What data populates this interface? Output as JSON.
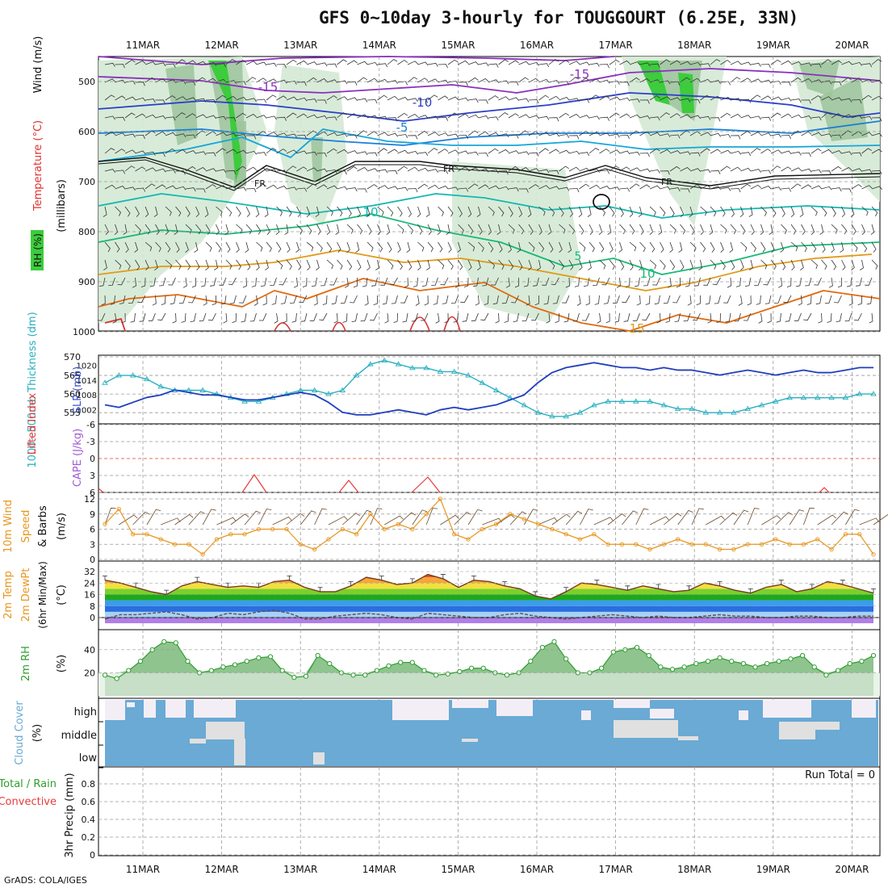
{
  "title": "GFS 0~10day 3-hourly for TOUGGOURT (6.25E, 33N)",
  "credit": "GrADS: COLA/IGES",
  "dates": [
    "11MAR",
    "12MAR",
    "13MAR",
    "14MAR",
    "15MAR",
    "16MAR",
    "17MAR",
    "18MAR",
    "19MAR",
    "20MAR"
  ],
  "colors": {
    "blue": "#1f3fbf",
    "cyan": "#2ab0c0",
    "orange": "#e8961e",
    "green": "#2e9e2e",
    "cloud": "#6aaad4",
    "red": "#e83a3a",
    "purple": "#9b59d0",
    "brown": "#8b5a2b"
  },
  "panels": {
    "upper": {
      "ylabel_rh": "RH (%)",
      "ylabel_temp": "Temperature (°C)",
      "ylabel_wind": "Wind (m/s)",
      "ylabel_p": "(millibars)",
      "ticks": [
        "500",
        "600",
        "700",
        "800",
        "900",
        "1000"
      ],
      "labels": {
        "m15a": "-15",
        "m15b": "-15",
        "m10": "-10",
        "m5": "-5",
        "fr1": "FR",
        "fr2": "FR",
        "fr3": "FR",
        "p10a": "10",
        "p10b": "10",
        "p5": "5",
        "p15": "15"
      }
    },
    "thick": {
      "ylabel_left": "1000~500mb Thickness (dm)",
      "ylabel_right": "SLP (mb)",
      "ticks_left": [
        "570",
        "565",
        "560",
        "555"
      ],
      "ticks_right": [
        "1020",
        "1014",
        "1008",
        "1002"
      ]
    },
    "cape": {
      "ylabel_left": "Lifted Index",
      "ylabel_right": "CAPE (J/kg)",
      "ticks": [
        "-6",
        "-3",
        "0",
        "3",
        "6"
      ]
    },
    "wind": {
      "ylabel1": "10m Wind",
      "ylabel2": "Speed",
      "ylabel3": "& Barbs",
      "ylabel_unit": "(m/s)",
      "ticks": [
        "12",
        "9",
        "6",
        "3",
        "0"
      ]
    },
    "temp": {
      "ylabel1": "2m Temp",
      "ylabel2": "2m DewPt",
      "ylabel3": "(6hr Min/Max)",
      "ylabel_unit": "(°C)",
      "ticks": [
        "32",
        "24",
        "16",
        "8",
        "0"
      ]
    },
    "rh": {
      "ylabel": "2m RH",
      "ylabel_unit": "(%)",
      "ticks": [
        "40",
        "20"
      ]
    },
    "cloud": {
      "ylabel": "Cloud Cover",
      "ylabel_unit": "(%)",
      "levels": [
        "high",
        "middle",
        "low"
      ]
    },
    "precip": {
      "ylabel1": "Total / Rain",
      "ylabel2": "Convective",
      "ylabel_unit": "3hr Precip (mm)",
      "ticks": [
        "0.8",
        "0.6",
        "0.4",
        "0.2",
        "0"
      ],
      "run_total": "Run Total = 0"
    }
  },
  "chart_data": [
    {
      "type": "line",
      "title": "1000~500mb Thickness (dm) / SLP (mb)",
      "series": [
        {
          "name": "1000~500mb Thickness (dm)",
          "values": [
            563,
            565,
            565,
            564,
            562,
            561,
            561,
            561,
            560,
            559,
            558,
            558,
            559,
            560,
            561,
            561,
            560,
            561,
            565,
            568,
            569,
            568,
            567,
            567,
            566,
            566,
            565,
            563,
            561,
            559,
            557,
            555,
            554,
            554,
            555,
            557,
            558,
            558,
            558,
            558,
            557,
            556,
            556,
            555,
            555,
            555,
            556,
            557,
            558,
            559,
            559,
            559,
            559,
            559,
            560,
            560
          ]
        },
        {
          "name": "SLP (mb)",
          "values": [
            1004,
            1003,
            1005,
            1007,
            1008,
            1010,
            1009,
            1008,
            1008,
            1007,
            1006,
            1006,
            1007,
            1008,
            1009,
            1008,
            1005,
            1001,
            1000,
            1000,
            1001,
            1002,
            1001,
            1000,
            1002,
            1003,
            1002,
            1003,
            1004,
            1006,
            1008,
            1013,
            1017,
            1019,
            1020,
            1021,
            1020,
            1019,
            1019,
            1018,
            1019,
            1018,
            1018,
            1017,
            1016,
            1017,
            1018,
            1017,
            1016,
            1017,
            1018,
            1017,
            1017,
            1018,
            1019,
            1019
          ]
        }
      ]
    },
    {
      "type": "line",
      "title": "10m Wind Speed (m/s)",
      "series": [
        {
          "name": "10m Wind Speed",
          "values": [
            7,
            10,
            5,
            5,
            4,
            3,
            3,
            1,
            4,
            5,
            5,
            6,
            6,
            6,
            3,
            2,
            4,
            6,
            5,
            9,
            6,
            7,
            6,
            9,
            12,
            5,
            4,
            6,
            7,
            9,
            8,
            7,
            6,
            5,
            4,
            5,
            3,
            3,
            3,
            2,
            3,
            4,
            3,
            3,
            2,
            2,
            3,
            3,
            4,
            3,
            3,
            4,
            2,
            5,
            5,
            1
          ]
        }
      ]
    },
    {
      "type": "area",
      "title": "2m Temp / DewPt (°C)",
      "series": [
        {
          "name": "2m Temp",
          "values": [
            26,
            24,
            21,
            18,
            16,
            22,
            25,
            23,
            21,
            22,
            21,
            25,
            26,
            21,
            18,
            18,
            22,
            28,
            26,
            23,
            24,
            30,
            27,
            21,
            26,
            25,
            22,
            20,
            15,
            13,
            18,
            24,
            23,
            21,
            19,
            22,
            20,
            18,
            19,
            24,
            22,
            19,
            17,
            21,
            23,
            18,
            20,
            25,
            23,
            20,
            17
          ]
        },
        {
          "name": "2m DewPt",
          "values": [
            -1,
            2,
            2,
            3,
            4,
            2,
            -1,
            0,
            3,
            2,
            4,
            5,
            3,
            -1,
            -1,
            1,
            2,
            3,
            2,
            0,
            -1,
            3,
            2,
            1,
            0,
            0,
            2,
            3,
            1,
            0,
            -1,
            0,
            1,
            2,
            1,
            0,
            1,
            0,
            0,
            1,
            2,
            1,
            1,
            0,
            0,
            1,
            1,
            0,
            0,
            1,
            1
          ]
        }
      ]
    },
    {
      "type": "area",
      "title": "2m RH (%)",
      "series": [
        {
          "name": "2m RH",
          "values": [
            18,
            15,
            22,
            30,
            40,
            47,
            46,
            30,
            20,
            22,
            25,
            27,
            30,
            33,
            34,
            22,
            16,
            17,
            35,
            28,
            20,
            18,
            18,
            22,
            26,
            29,
            29,
            22,
            18,
            19,
            21,
            24,
            24,
            20,
            18,
            20,
            30,
            42,
            47,
            32,
            20,
            20,
            24,
            38,
            40,
            42,
            35,
            25,
            23,
            25,
            28,
            30,
            33,
            30,
            28,
            25,
            28,
            30,
            32,
            35,
            25,
            18,
            22,
            28,
            30,
            35
          ]
        }
      ]
    }
  ]
}
